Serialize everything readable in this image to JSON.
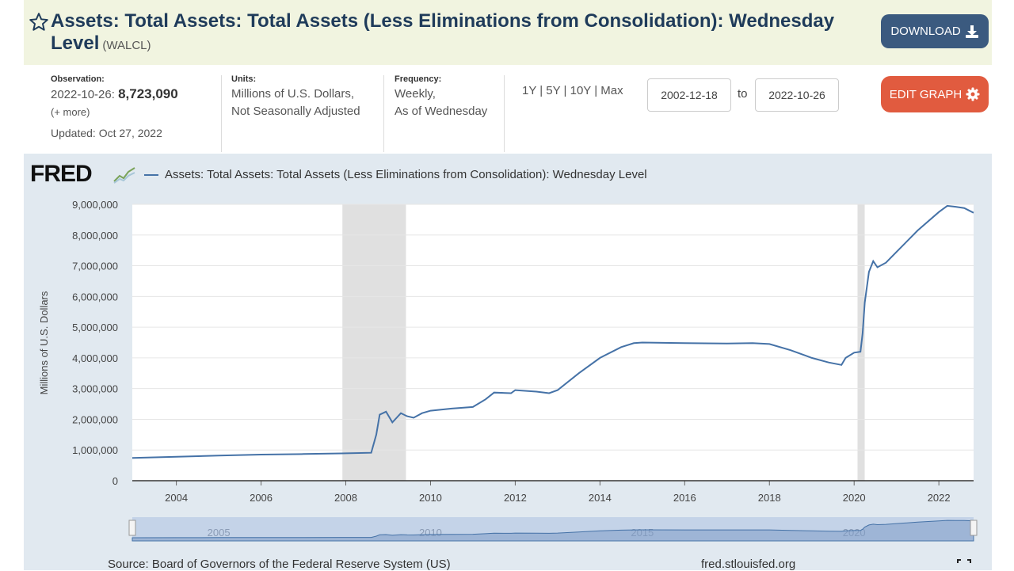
{
  "header": {
    "title": "Assets: Total Assets: Total Assets (Less Eliminations from Consolidation): Wednesday Level",
    "series_id": "(WALCL)",
    "download_label": "DOWNLOAD"
  },
  "info": {
    "observation_label": "Observation:",
    "observation_date": "2022-10-26:",
    "observation_value": "8,723,090",
    "more": "(+ more)",
    "updated": "Updated: Oct 27, 2022",
    "units_label": "Units:",
    "units_line1": "Millions of U.S. Dollars,",
    "units_line2": "Not Seasonally Adjusted",
    "frequency_label": "Frequency:",
    "frequency_line1": "Weekly,",
    "frequency_line2": "As of Wednesday",
    "range_links": "1Y | 5Y | 10Y | Max",
    "date_start": "2002-12-18",
    "date_to": "to",
    "date_end": "2022-10-26",
    "edit_label": "EDIT GRAPH"
  },
  "chart_header": {
    "logo": "FRED",
    "legend": "Assets: Total Assets: Total Assets (Less Eliminations from Consolidation): Wednesday Level"
  },
  "footer": {
    "source": "Source: Board of Governors of the Federal Reserve System (US)",
    "url": "fred.stlouisfed.org"
  },
  "colors": {
    "line": "#4572a7",
    "recession": "#e0e0e0",
    "download_button": "#3b5a7f",
    "edit_button": "#e15b3f",
    "header_bg": "#f1f4e0",
    "panel_bg": "#e1e9f0"
  },
  "chart_data": {
    "type": "line",
    "ylabel": "Millions of U.S. Dollars",
    "xlim": [
      2002.96,
      2022.82
    ],
    "ylim": [
      0,
      9000000
    ],
    "y_ticks": [
      "0",
      "1,000,000",
      "2,000,000",
      "3,000,000",
      "4,000,000",
      "5,000,000",
      "6,000,000",
      "7,000,000",
      "8,000,000",
      "9,000,000"
    ],
    "x_ticks": [
      "2004",
      "2006",
      "2008",
      "2010",
      "2012",
      "2014",
      "2016",
      "2018",
      "2020",
      "2022"
    ],
    "navigator_labels": [
      "2005",
      "2010",
      "2015",
      "2020"
    ],
    "grid": true,
    "recessions": [
      [
        2007.92,
        2009.42
      ],
      [
        2020.08,
        2020.25
      ]
    ],
    "series": [
      {
        "x": [
          2002.96,
          2004.0,
          2005.0,
          2006.0,
          2007.0,
          2007.9,
          2008.6,
          2008.72,
          2008.8,
          2008.95,
          2009.1,
          2009.2,
          2009.3,
          2009.45,
          2009.6,
          2009.8,
          2010.0,
          2010.5,
          2011.0,
          2011.3,
          2011.5,
          2011.9,
          2012.0,
          2012.5,
          2012.8,
          2013.0,
          2013.5,
          2014.0,
          2014.5,
          2014.8,
          2015.0,
          2016.0,
          2017.0,
          2017.6,
          2018.0,
          2018.5,
          2019.0,
          2019.4,
          2019.7,
          2019.8,
          2020.0,
          2020.15,
          2020.2,
          2020.25,
          2020.35,
          2020.45,
          2020.55,
          2020.75,
          2021.0,
          2021.5,
          2022.0,
          2022.2,
          2022.4,
          2022.6,
          2022.82
        ],
        "y": [
          740000,
          780000,
          820000,
          850000,
          870000,
          890000,
          910000,
          1500000,
          2150000,
          2250000,
          1900000,
          2050000,
          2200000,
          2100000,
          2050000,
          2200000,
          2280000,
          2350000,
          2400000,
          2650000,
          2870000,
          2850000,
          2950000,
          2900000,
          2850000,
          2950000,
          3500000,
          4000000,
          4350000,
          4480000,
          4500000,
          4480000,
          4470000,
          4480000,
          4450000,
          4250000,
          4000000,
          3850000,
          3770000,
          4000000,
          4170000,
          4200000,
          4800000,
          5800000,
          6800000,
          7150000,
          6950000,
          7100000,
          7450000,
          8150000,
          8750000,
          8950000,
          8920000,
          8880000,
          8723090
        ]
      }
    ]
  }
}
